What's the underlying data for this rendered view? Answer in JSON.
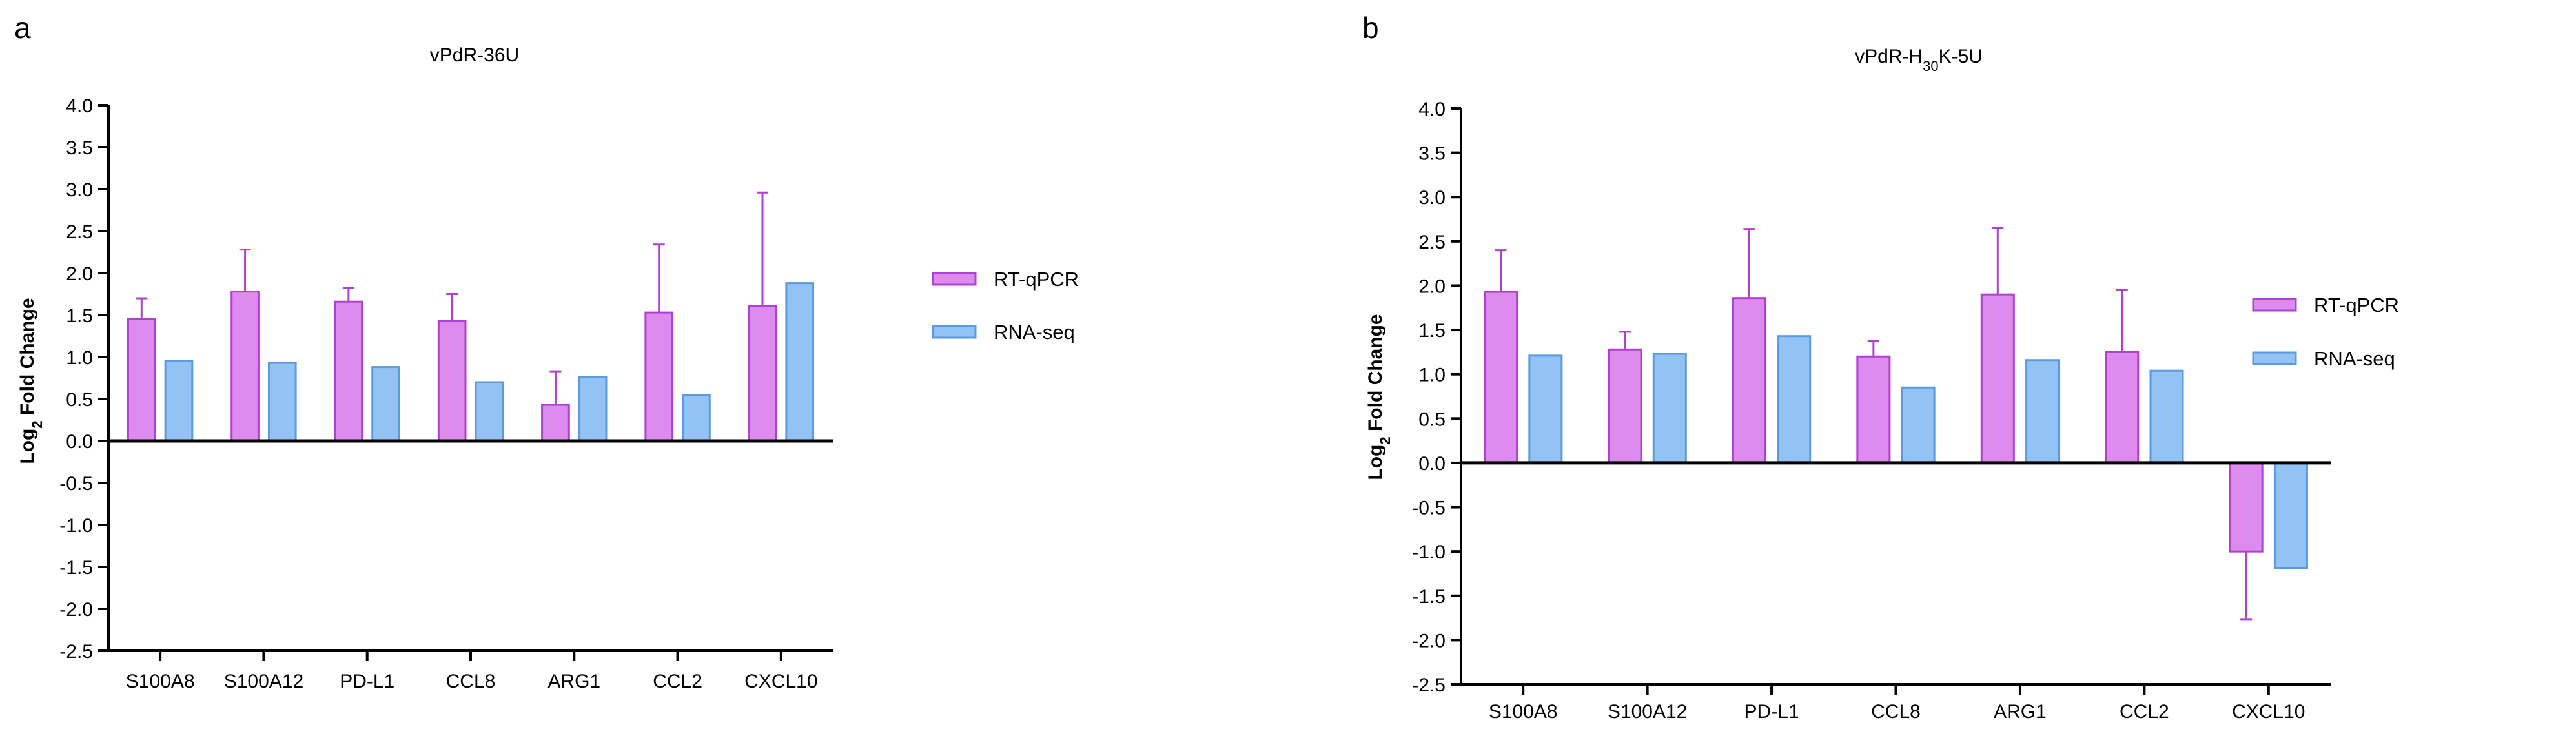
{
  "panels": [
    {
      "letter": "a",
      "colors": {
        "rtqpcr_fill": "#DE8BF0",
        "rtqpcr_stroke": "#B040D0",
        "rnaseq_fill": "#93C2F5",
        "rnaseq_stroke": "#5A9BE0",
        "axis": "#000000"
      },
      "chart_data": {
        "type": "bar",
        "title": "vPdR-36U",
        "xlabel": "",
        "ylabel_main": "Log",
        "ylabel_sub": "2",
        "ylabel_rest": " Fold Change",
        "ylim": [
          -2.5,
          4.0
        ],
        "yticks": [
          "4.0",
          "3.5",
          "3.0",
          "2.5",
          "2.0",
          "1.5",
          "1.0",
          "0.5",
          "0.0",
          "-0.5",
          "-1.0",
          "-1.5",
          "-2.0",
          "-2.5"
        ],
        "categories": [
          "S100A8",
          "S100A12",
          "PD-L1",
          "CCL8",
          "ARG1",
          "CCL2",
          "CXCL10"
        ],
        "legend_position": "right",
        "series": [
          {
            "name": "RT-qPCR",
            "values": [
              1.45,
              1.78,
              1.66,
              1.43,
              0.43,
              1.53,
              1.61
            ],
            "error": [
              0.25,
              0.5,
              0.16,
              0.32,
              0.4,
              0.81,
              1.35
            ]
          },
          {
            "name": "RNA-seq",
            "values": [
              0.95,
              0.93,
              0.88,
              0.7,
              0.76,
              0.55,
              1.88
            ]
          }
        ]
      }
    },
    {
      "letter": "b",
      "colors": {
        "rtqpcr_fill": "#DE8BF0",
        "rtqpcr_stroke": "#B040D0",
        "rnaseq_fill": "#93C2F5",
        "rnaseq_stroke": "#5A9BE0",
        "axis": "#000000"
      },
      "chart_data": {
        "type": "bar",
        "title_main": "vPdR-H",
        "title_sub": "30",
        "title_rest": "K-5U",
        "xlabel": "",
        "ylabel_main": "Log",
        "ylabel_sub": "2",
        "ylabel_rest": " Fold Change",
        "ylim": [
          -2.5,
          4.0
        ],
        "yticks": [
          "4.0",
          "3.5",
          "3.0",
          "2.5",
          "2.0",
          "1.5",
          "1.0",
          "0.5",
          "0.0",
          "-0.5",
          "-1.0",
          "-1.5",
          "-2.0",
          "-2.5"
        ],
        "categories": [
          "S100A8",
          "S100A12",
          "PD-L1",
          "CCL8",
          "ARG1",
          "CCL2",
          "CXCL10"
        ],
        "legend_position": "right",
        "series": [
          {
            "name": "RT-qPCR",
            "values": [
              1.93,
              1.28,
              1.86,
              1.2,
              1.9,
              1.25,
              -1.0
            ],
            "error": [
              0.47,
              0.2,
              0.78,
              0.18,
              0.75,
              0.7,
              0.77
            ]
          },
          {
            "name": "RNA-seq",
            "values": [
              1.21,
              1.23,
              1.43,
              0.85,
              1.16,
              1.04,
              -1.19
            ]
          }
        ]
      }
    }
  ]
}
